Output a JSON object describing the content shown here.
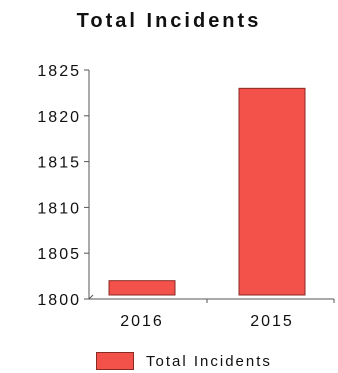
{
  "colors": {
    "bar_fill": "#f2524a",
    "bar_stroke": "#8a2a24",
    "axis": "#555555"
  },
  "chart_data": {
    "type": "bar",
    "title": "Total Incidents",
    "xlabel": "",
    "ylabel": "",
    "categories": [
      "2016",
      "2015"
    ],
    "series": [
      {
        "name": "Total Incidents",
        "values": [
          1802,
          1823
        ]
      }
    ],
    "ylim": [
      1800,
      1825
    ],
    "yticks": [
      "1800",
      "1805",
      "1810",
      "1815",
      "1820",
      "1825"
    ],
    "grid": false,
    "legend_position": "bottom"
  }
}
